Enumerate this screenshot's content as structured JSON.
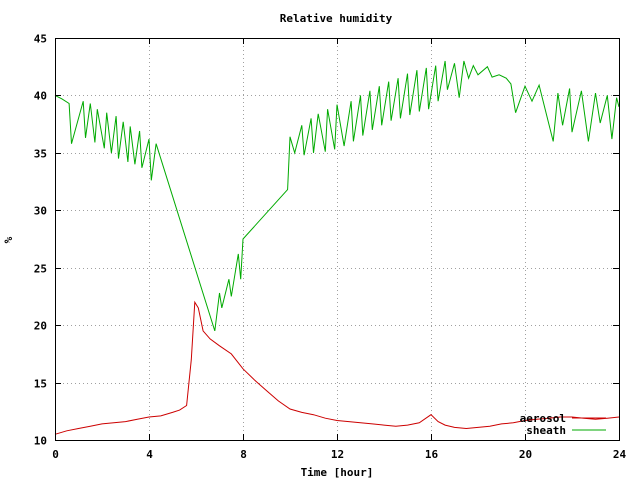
{
  "chart_data": {
    "type": "line",
    "title": "Relative humidity",
    "xlabel": "Time [hour]",
    "ylabel": "%",
    "xlim": [
      0,
      24
    ],
    "ylim": [
      10,
      45
    ],
    "x_ticks": [
      0,
      4,
      8,
      12,
      16,
      20,
      24
    ],
    "y_ticks": [
      10,
      15,
      20,
      25,
      30,
      35,
      40,
      45
    ],
    "grid": true,
    "legend_position": "bottom-right",
    "series": [
      {
        "name": "aerosol",
        "color": "#cc0000",
        "x": [
          0,
          0.5,
          1,
          1.5,
          2,
          2.5,
          3,
          3.5,
          4,
          4.5,
          5,
          5.3,
          5.6,
          5.8,
          5.95,
          6.1,
          6.3,
          6.6,
          7,
          7.5,
          8,
          8.5,
          9,
          9.5,
          10,
          10.5,
          11,
          11.5,
          12,
          12.5,
          13,
          13.5,
          14,
          14.5,
          15,
          15.5,
          16,
          16.3,
          16.6,
          17,
          17.5,
          18,
          18.5,
          19,
          19.5,
          20,
          20.5,
          21,
          21.5,
          22,
          22.5,
          23,
          23.5,
          24
        ],
        "y": [
          10.5,
          10.8,
          11.0,
          11.2,
          11.4,
          11.5,
          11.6,
          11.8,
          12.0,
          12.1,
          12.4,
          12.6,
          13.0,
          17.0,
          22.0,
          21.5,
          19.5,
          18.8,
          18.2,
          17.5,
          16.2,
          15.2,
          14.3,
          13.4,
          12.7,
          12.4,
          12.2,
          11.9,
          11.7,
          11.6,
          11.5,
          11.4,
          11.3,
          11.2,
          11.3,
          11.5,
          12.2,
          11.6,
          11.3,
          11.1,
          11.0,
          11.1,
          11.2,
          11.4,
          11.5,
          11.7,
          11.8,
          11.9,
          12.0,
          12.0,
          11.9,
          11.8,
          11.9,
          12.0
        ]
      },
      {
        "name": "sheath",
        "color": "#00aa00",
        "x": [
          0,
          0.3,
          0.6,
          0.7,
          1.2,
          1.3,
          1.5,
          1.7,
          1.8,
          2.1,
          2.2,
          2.4,
          2.6,
          2.7,
          2.9,
          3.1,
          3.2,
          3.4,
          3.6,
          3.7,
          4.0,
          4.1,
          4.3,
          6.8,
          7.0,
          7.1,
          7.4,
          7.5,
          7.8,
          7.9,
          8.0,
          9.9,
          10.0,
          10.2,
          10.5,
          10.6,
          10.9,
          11.0,
          11.2,
          11.5,
          11.6,
          11.9,
          12.0,
          12.3,
          12.6,
          12.7,
          13.0,
          13.1,
          13.4,
          13.5,
          13.8,
          13.9,
          14.2,
          14.3,
          14.6,
          14.7,
          15.0,
          15.1,
          15.4,
          15.5,
          15.8,
          15.9,
          16.2,
          16.3,
          16.6,
          16.7,
          17.0,
          17.2,
          17.4,
          17.6,
          17.8,
          18.0,
          18.4,
          18.6,
          18.9,
          19.2,
          19.4,
          19.6,
          20.0,
          20.3,
          20.6,
          21.2,
          21.4,
          21.6,
          21.9,
          22.0,
          22.4,
          22.7,
          23.0,
          23.2,
          23.5,
          23.7,
          23.9,
          24.0
        ],
        "y": [
          40.0,
          39.7,
          39.3,
          35.8,
          39.5,
          36.3,
          39.3,
          35.9,
          38.8,
          35.4,
          38.5,
          35.0,
          38.2,
          34.5,
          37.7,
          34.2,
          37.3,
          34.0,
          36.9,
          33.7,
          36.2,
          32.6,
          35.8,
          19.5,
          22.8,
          21.5,
          24.0,
          22.5,
          26.2,
          24.0,
          27.5,
          31.8,
          36.4,
          35.0,
          37.4,
          34.8,
          38.0,
          35.0,
          38.4,
          35.1,
          38.8,
          35.3,
          39.2,
          35.6,
          39.5,
          36.0,
          40.0,
          36.5,
          40.4,
          37.0,
          40.8,
          37.4,
          41.2,
          37.8,
          41.5,
          38.0,
          41.9,
          38.3,
          42.2,
          38.6,
          42.4,
          38.8,
          42.6,
          39.5,
          43.0,
          40.5,
          42.8,
          39.8,
          43.0,
          41.5,
          42.6,
          41.8,
          42.5,
          41.6,
          41.8,
          41.5,
          41.0,
          38.5,
          40.8,
          39.5,
          40.9,
          36.0,
          40.2,
          37.4,
          40.6,
          36.8,
          40.4,
          36.0,
          40.2,
          37.6,
          40.0,
          36.2,
          39.8,
          39.0
        ]
      }
    ]
  }
}
